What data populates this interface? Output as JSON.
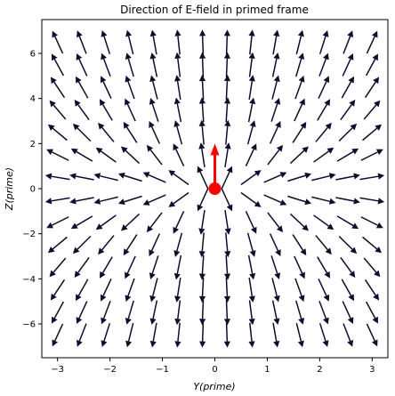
{
  "chart_data": {
    "type": "quiver",
    "title": "Direction of E-field in primed frame",
    "xlabel": "Y(prime)",
    "ylabel": "Z(prime)",
    "xlim": [
      -3.3,
      3.3
    ],
    "ylim": [
      -7.5,
      7.5
    ],
    "xticks": [
      -3,
      -2,
      -1,
      0,
      1,
      2,
      3
    ],
    "xtick_labels": [
      "−3",
      "−2",
      "−1",
      "0",
      "1",
      "2",
      "3"
    ],
    "yticks": [
      -6,
      -4,
      -2,
      0,
      2,
      4,
      6
    ],
    "ytick_labels": [
      "−6",
      "−4",
      "−2",
      "0",
      "2",
      "4",
      "6"
    ],
    "grid": false,
    "field_grid": {
      "y_start": -3.0,
      "y_step": 0.4615,
      "y_count": 14,
      "z_start": -6.5,
      "z_step": 1.0,
      "z_count": 14
    },
    "source_charge": {
      "y": 0.0,
      "z": 0.0
    },
    "velocity_arrow": {
      "y": 0.0,
      "z_start": 0.0,
      "z_end": 2.0
    },
    "colors": {
      "field_arrows": "#0d0d2e",
      "charge": "#ff0000",
      "velocity": "#ff0000"
    }
  }
}
